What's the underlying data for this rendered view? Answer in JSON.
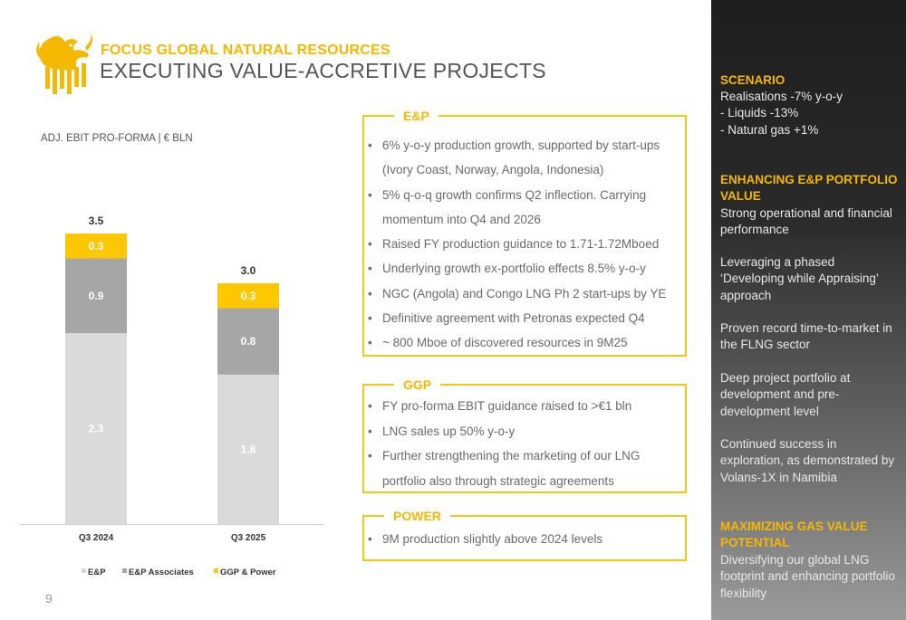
{
  "header": {
    "kicker": "FOCUS GLOBAL NATURAL RESOURCES",
    "title": "EXECUTING VALUE-ACCRETIVE PROJECTS"
  },
  "chart_data": {
    "type": "stacked_bar",
    "unit_label": "ADJ. EBIT PRO-FORMA | € BLN",
    "categories": [
      "Q3 2024",
      "Q3 2025"
    ],
    "series": [
      {
        "name": "E&P",
        "values": [
          2.3,
          1.8
        ],
        "color": "#DADADA"
      },
      {
        "name": "E&P Associates",
        "values": [
          0.9,
          0.8
        ],
        "color": "#A6A6A6"
      },
      {
        "name": "GGP & Power",
        "values": [
          0.3,
          0.3
        ],
        "color": "#FFC700"
      }
    ],
    "totals": [
      "3.5",
      "3.0"
    ],
    "segment_labels": [
      [
        "2.3",
        "0.9",
        "0.3"
      ],
      [
        "1.8",
        "0.8",
        "0.3"
      ]
    ],
    "ylim": [
      0,
      3.5
    ]
  },
  "boxes": {
    "ep": {
      "title": "E&P",
      "bullets": [
        "6% y-o-y production growth, supported by start-ups",
        "(Ivory Coast, Norway, Angola, Indonesia)",
        "5% q-o-q growth confirms Q2 inflection. Carrying",
        "momentum into Q4 and 2026",
        "Raised FY production guidance to 1.71-1.72Mboed",
        "Underlying growth ex-portfolio effects 8.5% y-o-y",
        "NGC (Angola) and Congo LNG Ph 2 start-ups by YE",
        "Definitive agreement with Petronas expected Q4",
        "~ 800 Mboe of discovered resources in 9M25"
      ]
    },
    "ggp": {
      "title": "GGP",
      "bullets": [
        "FY pro-forma EBIT guidance raised to >€1 bln",
        "LNG sales up 50% y-o-y",
        "Further strengthening the marketing of our LNG",
        "portfolio also through strategic agreements"
      ]
    },
    "power": {
      "title": "POWER",
      "bullets": [
        "9M production slightly above 2024 levels"
      ]
    }
  },
  "sidebar": {
    "scenario_title": "SCENARIO",
    "scenario_text": "Realisations -7% y-o-y\n - Liquids -13%\n - Natural gas +1%",
    "portfolio_title": "ENHANCING E&P PORTFOLIO VALUE",
    "portfolio_p1": "Strong operational and financial performance",
    "portfolio_p2": "Leveraging a phased ‘Developing while Appraising’ approach",
    "portfolio_p3": "Proven record time-to-market in the FLNG sector",
    "portfolio_p4": "Deep project portfolio at development and pre-development level",
    "portfolio_p5": "Continued success in exploration, as demonstrated by Volans-1X in Namibia",
    "gas_title": "MAXIMIZING GAS VALUE POTENTIAL",
    "gas_text": "Diversifying our global LNG footprint and enhancing portfolio flexibility"
  },
  "page_number": "9",
  "colors": {
    "accent": "#F5B800",
    "sidebar_bg": "#1e1e1e"
  }
}
